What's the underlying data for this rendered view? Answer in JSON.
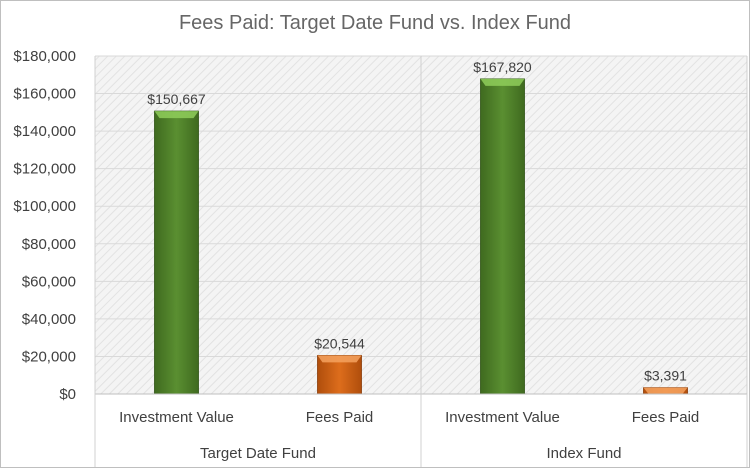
{
  "chart_data": {
    "type": "bar",
    "title": "Fees Paid: Target Date Fund vs. Index Fund",
    "xlabel": "",
    "ylabel": "",
    "ylim": [
      0,
      180000
    ],
    "y_ticks": [
      "$0",
      "$20,000",
      "$40,000",
      "$60,000",
      "$80,000",
      "$100,000",
      "$120,000",
      "$140,000",
      "$160,000",
      "$180,000"
    ],
    "grid": true,
    "legend": "none",
    "groups": [
      "Target Date Fund",
      "Index Fund"
    ],
    "categories": [
      "Investment Value",
      "Fees Paid",
      "Investment Value",
      "Fees Paid"
    ],
    "values": [
      150667,
      20544,
      167820,
      3391
    ],
    "data_labels": [
      "$150,667",
      "$20,544",
      "$167,820",
      "$3,391"
    ],
    "colors": {
      "investment": "#4e7a2a",
      "investment_light": "#8fce5a",
      "fees": "#c75a12",
      "fees_light": "#f5a25f",
      "grid": "#d9d9d9",
      "plot_bg": "#f2f2f2"
    }
  }
}
